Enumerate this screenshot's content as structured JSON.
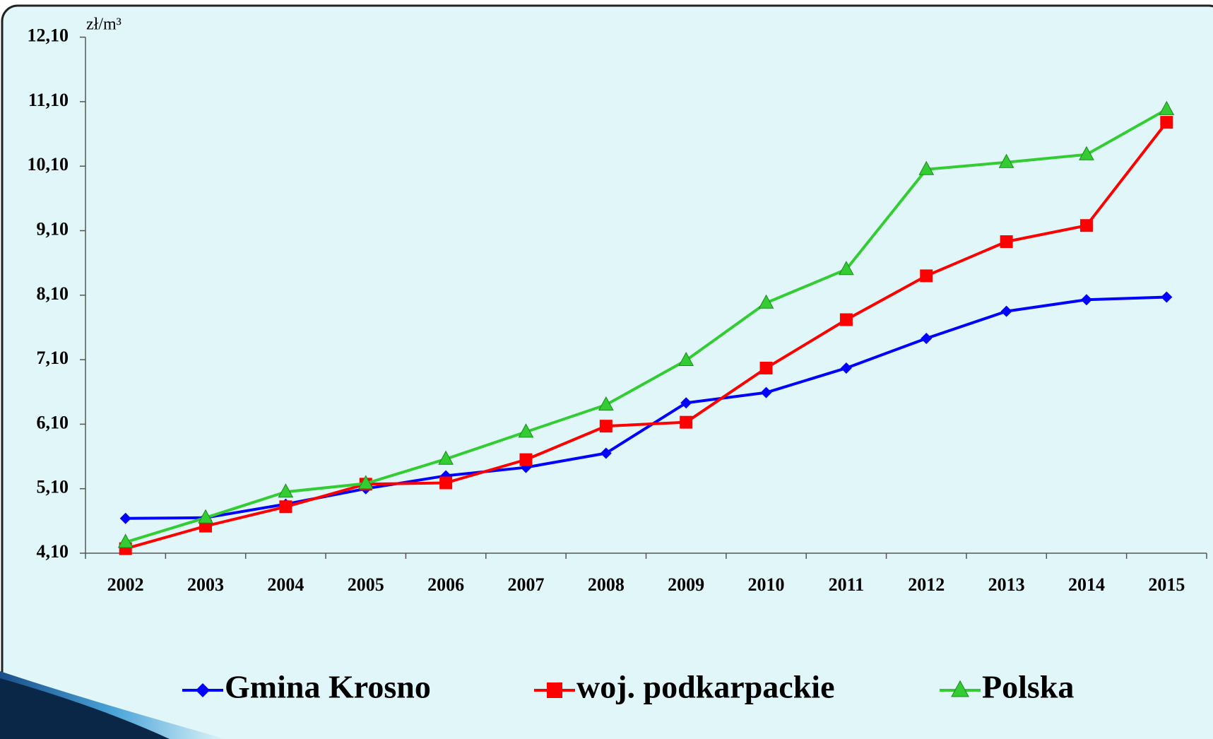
{
  "chart_data": {
    "type": "line",
    "y_label": "zł/m³",
    "categories": [
      "2002",
      "2003",
      "2004",
      "2005",
      "2006",
      "2007",
      "2008",
      "2009",
      "2010",
      "2011",
      "2012",
      "2013",
      "2014",
      "2015"
    ],
    "series": [
      {
        "name": "Gmina Krosno",
        "color": "#0000ff",
        "marker": "diamond",
        "values": [
          4.64,
          4.65,
          4.86,
          5.1,
          5.3,
          5.43,
          5.65,
          6.43,
          6.59,
          6.97,
          7.43,
          7.85,
          8.03,
          8.07
        ]
      },
      {
        "name": "woj. podkarpackie",
        "color": "#ff0000",
        "marker": "square",
        "values": [
          4.17,
          4.52,
          4.82,
          5.17,
          5.19,
          5.55,
          6.07,
          6.13,
          6.97,
          7.72,
          8.4,
          8.93,
          9.18,
          10.78
        ]
      },
      {
        "name": "Polska",
        "color": "#33cc33",
        "marker": "triangle",
        "values": [
          4.27,
          4.65,
          5.05,
          5.18,
          5.56,
          5.98,
          6.4,
          7.09,
          7.98,
          8.5,
          10.05,
          10.16,
          10.28,
          10.98
        ]
      }
    ],
    "ylim": [
      4.1,
      12.1
    ],
    "yticks": [
      {
        "value": 4.1,
        "label": "4,10"
      },
      {
        "value": 5.1,
        "label": "5,10"
      },
      {
        "value": 6.1,
        "label": "6,10"
      },
      {
        "value": 7.1,
        "label": "7,10"
      },
      {
        "value": 8.1,
        "label": "8,10"
      },
      {
        "value": 9.1,
        "label": "9,10"
      },
      {
        "value": 10.1,
        "label": "10,10"
      },
      {
        "value": 11.1,
        "label": "11,10"
      },
      {
        "value": 12.1,
        "label": "12,10"
      }
    ],
    "legend": "bottom"
  }
}
